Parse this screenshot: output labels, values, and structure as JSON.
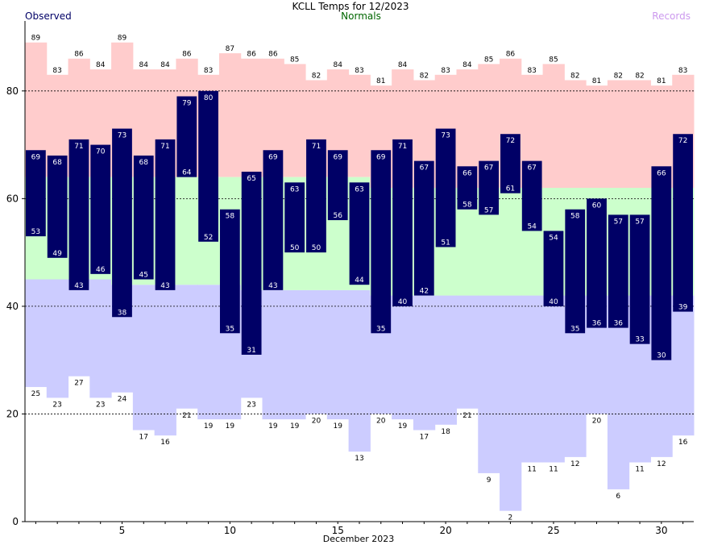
{
  "chart_data": {
    "type": "bar",
    "title": "KCLL Temps for 12/2023",
    "xlabel": "December 2023",
    "ylabel": "",
    "ylim": [
      0,
      93
    ],
    "y_ticks": [
      0,
      20,
      40,
      60,
      80
    ],
    "x_ticks": [
      5,
      10,
      15,
      20,
      25,
      30
    ],
    "grid": "dashed horizontal",
    "legend": [
      {
        "name": "Observed",
        "color": "#000066",
        "position": "top-left"
      },
      {
        "name": "Normals",
        "color": "#006600",
        "position": "top-center"
      },
      {
        "name": "Records",
        "color": "#cc99ee",
        "position": "top-right"
      }
    ],
    "colors": {
      "observed": "#000066",
      "normal": "#ccffcc",
      "record_high": "#ffcccc",
      "record_low": "#ccccff",
      "grid": "#000000"
    },
    "days": [
      1,
      2,
      3,
      4,
      5,
      6,
      7,
      8,
      9,
      10,
      11,
      12,
      13,
      14,
      15,
      16,
      17,
      18,
      19,
      20,
      21,
      22,
      23,
      24,
      25,
      26,
      27,
      28,
      29,
      30,
      31
    ],
    "observed_high": [
      69,
      68,
      71,
      70,
      73,
      68,
      71,
      79,
      80,
      58,
      65,
      69,
      63,
      71,
      69,
      63,
      69,
      71,
      67,
      73,
      66,
      67,
      72,
      67,
      54,
      58,
      60,
      57,
      57,
      66,
      72
    ],
    "observed_low": [
      53,
      49,
      43,
      46,
      38,
      45,
      43,
      64,
      52,
      35,
      31,
      43,
      50,
      50,
      56,
      44,
      35,
      40,
      42,
      51,
      58,
      57,
      61,
      54,
      40,
      35,
      36,
      36,
      33,
      30,
      39
    ],
    "record_high": [
      89,
      83,
      86,
      84,
      89,
      84,
      84,
      86,
      83,
      87,
      86,
      86,
      85,
      82,
      84,
      83,
      81,
      84,
      82,
      83,
      84,
      85,
      86,
      83,
      85,
      82,
      81,
      82,
      82,
      81,
      83
    ],
    "record_low": [
      25,
      23,
      27,
      23,
      24,
      17,
      16,
      21,
      19,
      19,
      23,
      19,
      19,
      20,
      19,
      13,
      20,
      19,
      17,
      18,
      21,
      9,
      2,
      11,
      11,
      12,
      20,
      6,
      11,
      12,
      16
    ],
    "normal_high": [
      64,
      64,
      64,
      64,
      64,
      64,
      64,
      64,
      64,
      64,
      64,
      64,
      64,
      64,
      64,
      64,
      62,
      62,
      62,
      62,
      62,
      62,
      62,
      62,
      62,
      62,
      62,
      62,
      62,
      62,
      62
    ],
    "normal_low": [
      45,
      45,
      45,
      45,
      44,
      44,
      44,
      44,
      44,
      44,
      43,
      43,
      43,
      43,
      43,
      43,
      42,
      42,
      42,
      42,
      42,
      42,
      42,
      42,
      42,
      42,
      42,
      42,
      42,
      42,
      42
    ]
  }
}
